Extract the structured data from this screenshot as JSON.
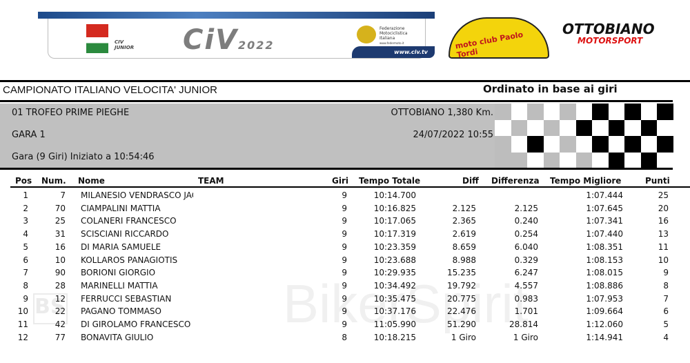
{
  "banner": {
    "civ_small": "CIV",
    "civ_junior": "JUNIOR",
    "civ_title": "CiV",
    "civ_year": "2022",
    "fmi_text": "Federazione Motociclistica Italiana",
    "fmi_url": "www.federmoto.it",
    "site": "www.civ.tv"
  },
  "sponsors": {
    "motoclub": "moto club Paolo Tordi",
    "ottobiano_1": "OTTOBIANO",
    "ottobiano_2": "MOTORSPORT"
  },
  "header": {
    "title": "CAMPIONATO ITALIANO VELOCITA' JUNIOR",
    "order": "Ordinato in base ai giri"
  },
  "event": {
    "trophy": "01 TROFEO PRIME PIEGHE",
    "race": "GARA 1",
    "race_info": "Gara (9 Giri) Iniziato a 10:54:46",
    "track": "OTTOBIANO 1,380 Km.",
    "datetime": "24/07/2022 10:55"
  },
  "columns": {
    "pos": "Pos",
    "num": "Num.",
    "name": "Nome",
    "team": "TEAM",
    "laps": "Giri",
    "total": "Tempo Totale",
    "diff": "Diff",
    "gap": "Differenza",
    "best": "Tempo Migliore",
    "points": "Punti"
  },
  "results": [
    {
      "pos": "1",
      "num": "7",
      "name": "MILANESIO VENDRASCO JACO",
      "laps": "9",
      "total": "10:14.700",
      "diff": "",
      "gap": "",
      "best": "1:07.444",
      "points": "25"
    },
    {
      "pos": "2",
      "num": "70",
      "name": "CIAMPALINI MATTIA",
      "laps": "9",
      "total": "10:16.825",
      "diff": "2.125",
      "gap": "2.125",
      "best": "1:07.645",
      "points": "20"
    },
    {
      "pos": "3",
      "num": "25",
      "name": "COLANERI FRANCESCO",
      "laps": "9",
      "total": "10:17.065",
      "diff": "2.365",
      "gap": "0.240",
      "best": "1:07.341",
      "points": "16"
    },
    {
      "pos": "4",
      "num": "31",
      "name": "SCISCIANI RICCARDO",
      "laps": "9",
      "total": "10:17.319",
      "diff": "2.619",
      "gap": "0.254",
      "best": "1:07.440",
      "points": "13"
    },
    {
      "pos": "5",
      "num": "16",
      "name": "DI MARIA SAMUELE",
      "laps": "9",
      "total": "10:23.359",
      "diff": "8.659",
      "gap": "6.040",
      "best": "1:08.351",
      "points": "11"
    },
    {
      "pos": "6",
      "num": "10",
      "name": "KOLLAROS PANAGIOTIS",
      "laps": "9",
      "total": "10:23.688",
      "diff": "8.988",
      "gap": "0.329",
      "best": "1:08.153",
      "points": "10"
    },
    {
      "pos": "7",
      "num": "90",
      "name": "BORIONI GIORGIO",
      "laps": "9",
      "total": "10:29.935",
      "diff": "15.235",
      "gap": "6.247",
      "best": "1:08.015",
      "points": "9"
    },
    {
      "pos": "8",
      "num": "28",
      "name": "MARINELLI MATTIA",
      "laps": "9",
      "total": "10:34.492",
      "diff": "19.792",
      "gap": "4.557",
      "best": "1:08.886",
      "points": "8"
    },
    {
      "pos": "9",
      "num": "12",
      "name": "FERRUCCI SEBASTIAN",
      "laps": "9",
      "total": "10:35.475",
      "diff": "20.775",
      "gap": "0.983",
      "best": "1:07.953",
      "points": "7"
    },
    {
      "pos": "10",
      "num": "22",
      "name": "PAGANO TOMMASO",
      "laps": "9",
      "total": "10:37.176",
      "diff": "22.476",
      "gap": "1.701",
      "best": "1:09.664",
      "points": "6"
    },
    {
      "pos": "11",
      "num": "42",
      "name": "DI GIROLAMO FRANCESCO",
      "laps": "9",
      "total": "11:05.990",
      "diff": "51.290",
      "gap": "28.814",
      "best": "1:12.060",
      "points": "5"
    },
    {
      "pos": "12",
      "num": "77",
      "name": "BONAVITA GIULIO",
      "laps": "8",
      "total": "10:18.215",
      "diff": "1 Giro",
      "gap": "1 Giro",
      "best": "1:14.941",
      "points": "4"
    }
  ],
  "watermark": {
    "text": "BikerSpirit",
    "logo": "BS"
  },
  "checker_pattern": [
    "GWGWGWBWBWB",
    "WGWGWBWBWBW",
    "GWBWGWBWBWB",
    "GGWGWGWBWBW"
  ],
  "colors": {
    "panel": "#c0c0c0",
    "checker_gray": "#bdbdbd",
    "checker_black": "#000000"
  }
}
